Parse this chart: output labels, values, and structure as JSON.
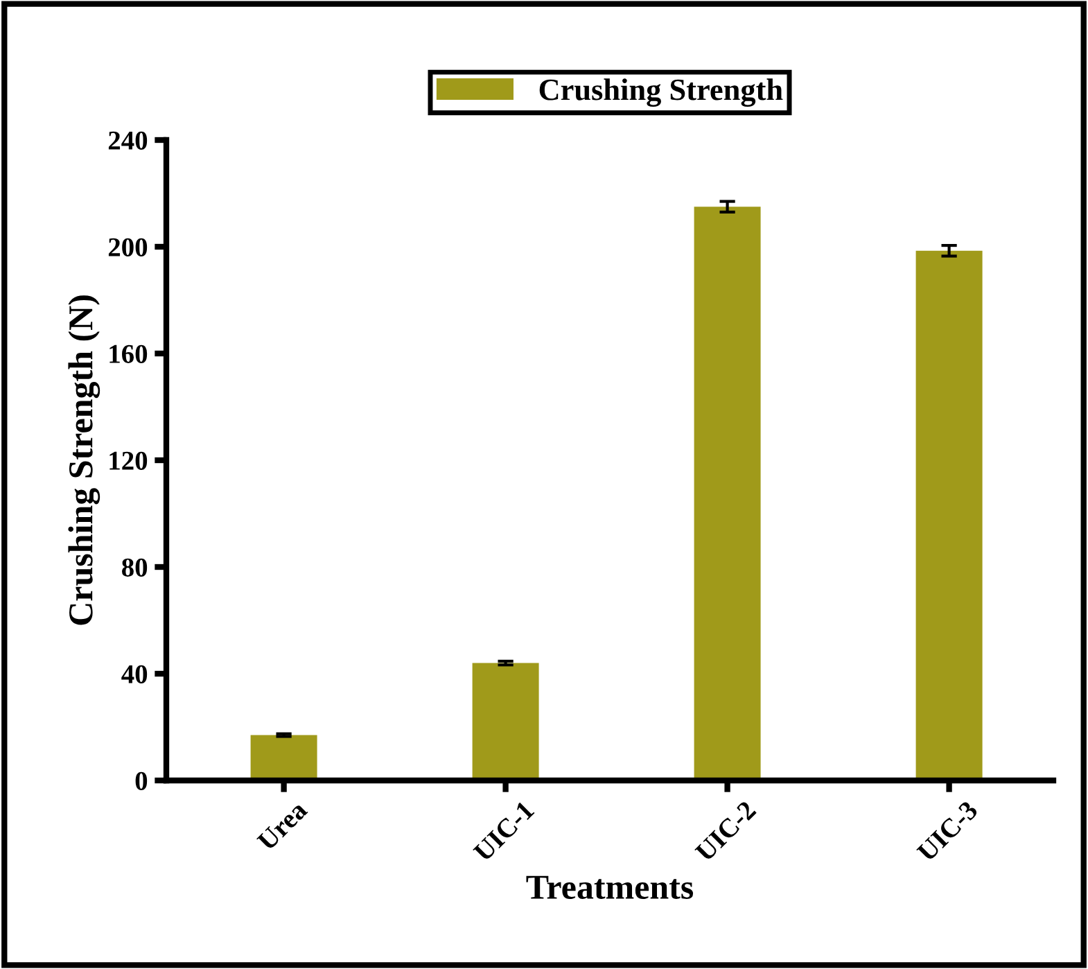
{
  "chart_data": {
    "type": "bar",
    "xlabel": "Treatments",
    "ylabel": "Crushing Strength (N)",
    "categories": [
      "Urea",
      "UIC-1",
      "UIC-2",
      "UIC-3"
    ],
    "series": [
      {
        "name": "Crushing Strength",
        "color": "#a09a1a",
        "values": [
          17,
          44,
          215,
          198.5
        ],
        "errors": [
          0.5,
          0.7,
          2,
          2
        ]
      }
    ],
    "ylim": [
      0,
      240
    ],
    "yticks": [
      0,
      40,
      80,
      120,
      160,
      200,
      240
    ],
    "legend": "top",
    "grid": false
  }
}
